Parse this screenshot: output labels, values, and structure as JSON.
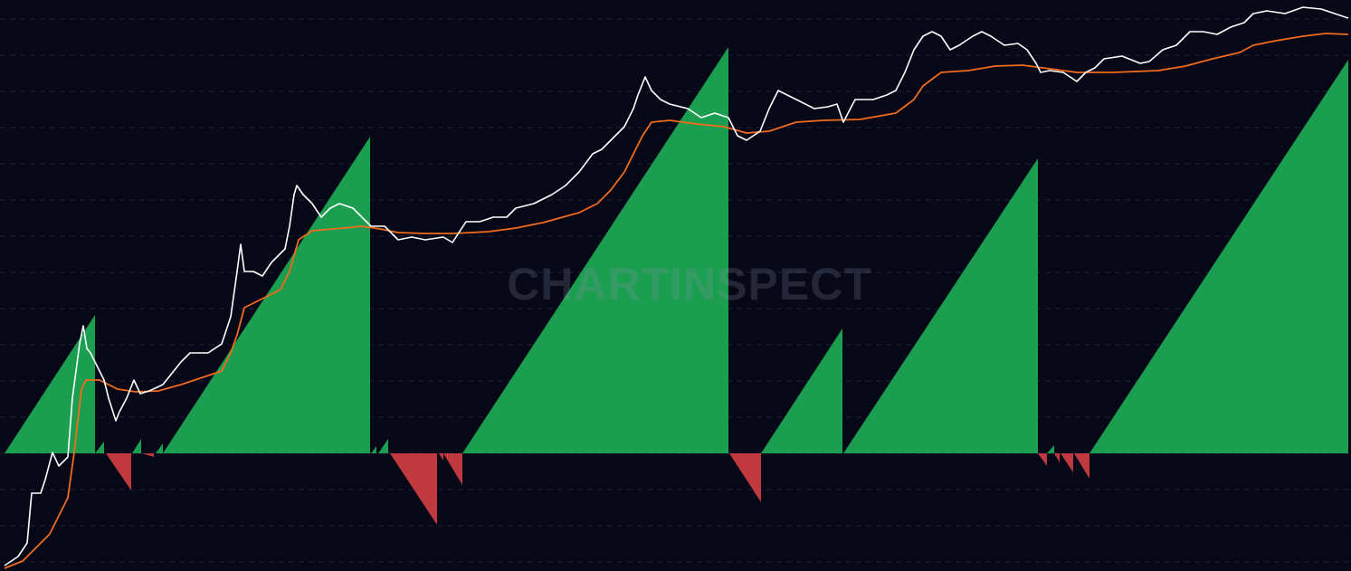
{
  "chart_data": {
    "type": "line",
    "watermark": "CHARTINSPECT",
    "xlim": [
      0,
      1493
    ],
    "ylim": [
      -130,
      501
    ],
    "yticks": [
      -120,
      -80,
      -40,
      0,
      40,
      80,
      120,
      160,
      200,
      240,
      280,
      320,
      360,
      400,
      440,
      480
    ],
    "grid": true,
    "series": [
      {
        "color": "#ffffff",
        "x": [
          5,
          20,
          30,
          35,
          45,
          50,
          58,
          65,
          75,
          80,
          88,
          92,
          96,
          100,
          105,
          110,
          115,
          120,
          128,
          132,
          140,
          148,
          155,
          165,
          180,
          200,
          210,
          230,
          245,
          255,
          262,
          266,
          270,
          280,
          290,
          300,
          315,
          320,
          325,
          328,
          335,
          345,
          355,
          365,
          375,
          390,
          400,
          410,
          425,
          440,
          455,
          470,
          490,
          500,
          515,
          530,
          545,
          560,
          570,
          590,
          610,
          625,
          640,
          655,
          665,
          680,
          690,
          700,
          705,
          713,
          720,
          730,
          740,
          760,
          775,
          790,
          805,
          815,
          825,
          840,
          850,
          860,
          870,
          880,
          900,
          915,
          925,
          932,
          945,
          965,
          980,
          990,
          1000,
          1010,
          1020,
          1030,
          1040,
          1050,
          1060,
          1075,
          1085,
          1095,
          1110,
          1125,
          1135,
          1145,
          1150,
          1160,
          1175,
          1190,
          1200,
          1210,
          1220,
          1240,
          1260,
          1270,
          1285,
          1300,
          1315,
          1330,
          1345,
          1360,
          1375,
          1385,
          1400,
          1420,
          1440,
          1460,
          1475,
          1490
        ],
        "values": [
          -124,
          -114,
          -99,
          -44,
          -44,
          -29,
          1,
          -14,
          -4,
          61,
          121,
          141,
          116,
          111,
          101,
          91,
          81,
          61,
          36,
          46,
          61,
          81,
          66,
          69,
          76,
          101,
          111,
          111,
          121,
          151,
          201,
          231,
          201,
          201,
          196,
          211,
          226,
          251,
          286,
          296,
          286,
          276,
          261,
          271,
          276,
          271,
          261,
          251,
          251,
          236,
          239,
          236,
          239,
          233,
          256,
          256,
          261,
          261,
          271,
          276,
          286,
          296,
          311,
          331,
          336,
          351,
          361,
          381,
          396,
          416,
          401,
          391,
          386,
          381,
          371,
          376,
          371,
          351,
          346,
          356,
          381,
          401,
          396,
          391,
          381,
          383,
          386,
          366,
          391,
          391,
          396,
          401,
          421,
          446,
          461,
          466,
          461,
          446,
          451,
          461,
          466,
          461,
          451,
          453,
          446,
          431,
          421,
          423,
          421,
          411,
          421,
          426,
          436,
          439,
          431,
          433,
          446,
          451,
          466,
          466,
          463,
          471,
          476,
          486,
          489,
          486,
          493,
          491,
          486,
          481
        ]
      },
      {
        "color": "#f26b1d",
        "x": [
          5,
          25,
          40,
          55,
          65,
          75,
          82,
          90,
          95,
          110,
          130,
          150,
          175,
          200,
          230,
          245,
          255,
          262,
          270,
          290,
          310,
          320,
          330,
          345,
          380,
          400,
          420,
          440,
          470,
          500,
          540,
          570,
          600,
          640,
          660,
          675,
          690,
          700,
          710,
          720,
          740,
          770,
          800,
          825,
          850,
          880,
          910,
          950,
          990,
          1010,
          1020,
          1040,
          1070,
          1100,
          1130,
          1160,
          1190,
          1230,
          1280,
          1310,
          1340,
          1370,
          1385,
          1410,
          1440,
          1465,
          1490
        ],
        "values": [
          -127,
          -119,
          -104,
          -89,
          -69,
          -49,
          1,
          71,
          81,
          81,
          71,
          68,
          69,
          76,
          86,
          91,
          111,
          131,
          161,
          171,
          181,
          201,
          236,
          246,
          249,
          251,
          248,
          244,
          243,
          243,
          245,
          249,
          255,
          266,
          276,
          291,
          311,
          331,
          351,
          366,
          368,
          364,
          361,
          354,
          356,
          366,
          368,
          369,
          376,
          391,
          406,
          421,
          423,
          428,
          429,
          425,
          421,
          421,
          423,
          428,
          436,
          443,
          451,
          456,
          461,
          464,
          463
        ]
      }
    ],
    "oscillator": {
      "positive_color": "#1c9e50",
      "negative_color": "#c0393f",
      "x_start": [
        5,
        105,
        117,
        146,
        157,
        172,
        180,
        410,
        418,
        431,
        485,
        490,
        511,
        806,
        841,
        932,
        1147,
        1157,
        1165,
        1172,
        1187,
        1204
      ],
      "x_end": [
        105,
        115,
        145,
        156,
        170,
        180,
        409,
        416,
        429,
        483,
        490,
        511,
        805,
        841,
        931,
        1147,
        1157,
        1165,
        1171,
        1186,
        1204,
        1490
      ],
      "values": [
        153,
        13,
        -41,
        16,
        -4,
        11,
        350,
        8,
        16,
        -79,
        -8,
        -35,
        449,
        -54,
        138,
        326,
        -14,
        9,
        -10,
        -21,
        -28,
        435
      ]
    }
  }
}
